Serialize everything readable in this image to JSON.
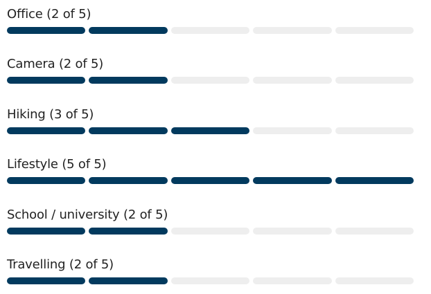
{
  "colors": {
    "filled": "#023a5e",
    "empty": "#eeeeee",
    "text": "#222222"
  },
  "max_score": 5,
  "ratings": [
    {
      "label": "Office (2 of 5)",
      "score": 2
    },
    {
      "label": "Camera (2 of 5)",
      "score": 2
    },
    {
      "label": "Hiking (3 of 5)",
      "score": 3
    },
    {
      "label": "Lifestyle (5 of 5)",
      "score": 5
    },
    {
      "label": "School / university (2 of 5)",
      "score": 2
    },
    {
      "label": "Travelling (2 of 5)",
      "score": 2
    }
  ]
}
